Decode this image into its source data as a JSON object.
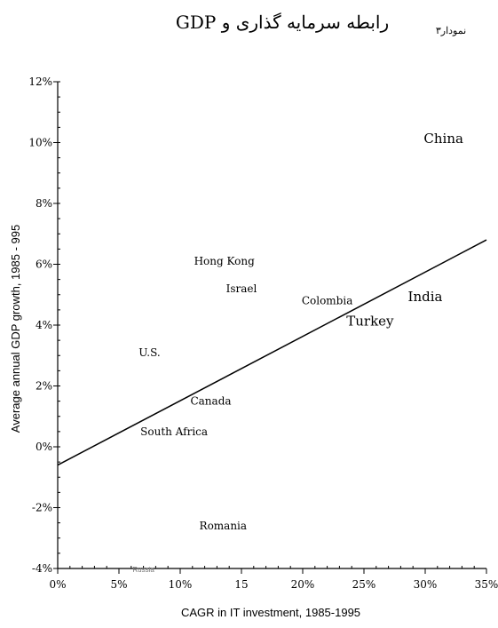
{
  "header": {
    "title": "رابطه سرمایه گذاری و GDP",
    "figure_label": "نمودار۳"
  },
  "chart_data": {
    "type": "scatter",
    "title": "رابطه سرمایه گذاری و GDP",
    "xlabel": "CAGR in IT investment, 1985-1995",
    "ylabel": "Average annual GDP growth, 1985 - 995",
    "xlim": [
      0,
      35
    ],
    "ylim": [
      -4,
      12
    ],
    "x_ticks": [
      0,
      5,
      10,
      15,
      20,
      25,
      30,
      35
    ],
    "x_tick_labels": [
      "0%",
      "5%",
      "10%",
      "15",
      "20%",
      "25%",
      "30%",
      "35%"
    ],
    "y_ticks": [
      -4,
      -2,
      0,
      2,
      4,
      6,
      8,
      10,
      12
    ],
    "y_tick_labels": [
      "-4%",
      "-2%",
      "0%",
      "2%",
      "4%",
      "6%",
      "8%",
      "10%",
      "12%"
    ],
    "grid": false,
    "legend": "none",
    "points": [
      {
        "label": "China",
        "x": 31.5,
        "y": 10.1
      },
      {
        "label": "Hong Kong",
        "x": 13.6,
        "y": 6.1
      },
      {
        "label": "Israel",
        "x": 15.0,
        "y": 5.2
      },
      {
        "label": "Colombia",
        "x": 22.0,
        "y": 4.8
      },
      {
        "label": "India",
        "x": 30.0,
        "y": 4.9
      },
      {
        "label": "Turkey",
        "x": 25.5,
        "y": 4.1
      },
      {
        "label": "U.S.",
        "x": 7.5,
        "y": 3.1
      },
      {
        "label": "Canada",
        "x": 12.5,
        "y": 1.5
      },
      {
        "label": "South Africa",
        "x": 9.5,
        "y": 0.5
      },
      {
        "label": "Romania",
        "x": 13.5,
        "y": -2.6
      },
      {
        "label": "Russia",
        "x": 7.0,
        "y": -4.0
      }
    ],
    "trendline": {
      "x": [
        0,
        35
      ],
      "y": [
        -0.6,
        6.8
      ]
    },
    "colors": {
      "axis": "#000000",
      "text": "#000000",
      "russia": "#777777"
    }
  }
}
